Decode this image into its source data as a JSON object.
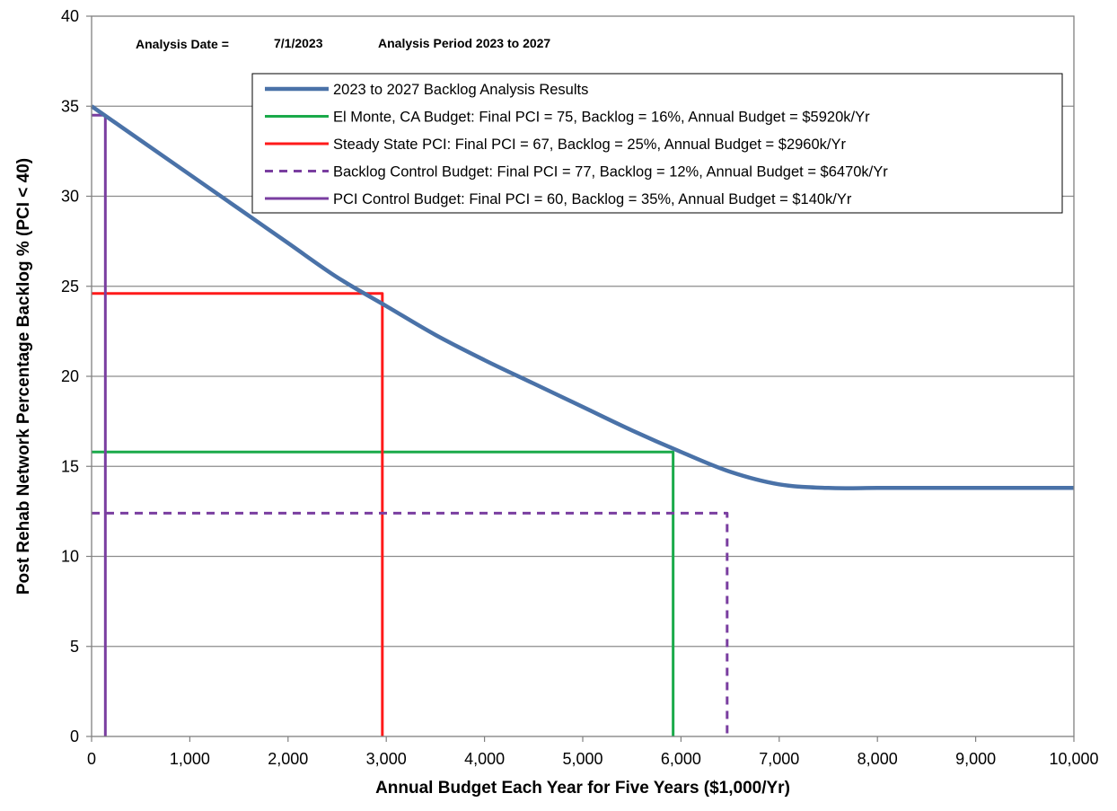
{
  "chart_data": {
    "type": "line",
    "header": {
      "analysis_date_label": "Analysis Date =",
      "analysis_date": "7/1/2023",
      "analysis_period": "Analysis Period 2023 to 2027"
    },
    "xlabel": "Annual Budget Each Year for Five Years ($1,000/Yr)",
    "ylabel": "Post Rehab Network Percentage Backlog % (PCI < 40)",
    "xlim": [
      0,
      10000
    ],
    "ylim": [
      0,
      40
    ],
    "x_ticks": [
      0,
      1000,
      2000,
      3000,
      4000,
      5000,
      6000,
      7000,
      8000,
      9000,
      10000
    ],
    "x_tick_labels": [
      "0",
      "1,000",
      "2,000",
      "3,000",
      "4,000",
      "5,000",
      "6,000",
      "7,000",
      "8,000",
      "9,000",
      "10,000"
    ],
    "y_ticks": [
      0,
      5,
      10,
      15,
      20,
      25,
      30,
      35,
      40
    ],
    "y_tick_labels": [
      "0",
      "5",
      "10",
      "15",
      "20",
      "25",
      "30",
      "35",
      "40"
    ],
    "grid": "horizontal",
    "legend_position": "top-right",
    "series": [
      {
        "name": "2023 to 2027 Backlog Analysis Results",
        "color": "#4a72a8",
        "style": "solid",
        "x": [
          0,
          500,
          1000,
          1500,
          2000,
          2500,
          3000,
          3500,
          4000,
          4500,
          5000,
          5500,
          6000,
          6500,
          7000,
          7500,
          8000,
          8500,
          9000,
          9500,
          10000
        ],
        "y": [
          35,
          33.1,
          31.2,
          29.3,
          27.4,
          25.5,
          23.9,
          22.3,
          20.9,
          19.6,
          18.3,
          17,
          15.8,
          14.7,
          14,
          13.8,
          13.8,
          13.8,
          13.8,
          13.8,
          13.8
        ]
      },
      {
        "name": "El Monte, CA Budget: Final PCI = 75, Backlog = 16%, Annual Budget = $5920k/Yr",
        "color": "#1aaa4a",
        "style": "solid",
        "x": [
          0,
          5920,
          5920
        ],
        "y": [
          15.8,
          15.8,
          0
        ]
      },
      {
        "name": "Steady State PCI: Final PCI = 67, Backlog = 25%, Annual Budget = $2960k/Yr",
        "color": "#ff1a1a",
        "style": "solid",
        "x": [
          0,
          2960,
          2960
        ],
        "y": [
          24.6,
          24.6,
          0
        ]
      },
      {
        "name": "Backlog Control Budget: Final PCI = 77, Backlog = 12%, Annual Budget = $6470k/Yr",
        "color": "#7a3ea0",
        "style": "dashed",
        "x": [
          0,
          6470,
          6470
        ],
        "y": [
          12.4,
          12.4,
          0
        ]
      },
      {
        "name": "PCI Control Budget: Final PCI = 60, Backlog = 35%, Annual Budget = $140k/Yr",
        "color": "#7a3ea0",
        "style": "solid",
        "x": [
          0,
          140,
          140
        ],
        "y": [
          34.5,
          34.5,
          0
        ]
      }
    ]
  }
}
